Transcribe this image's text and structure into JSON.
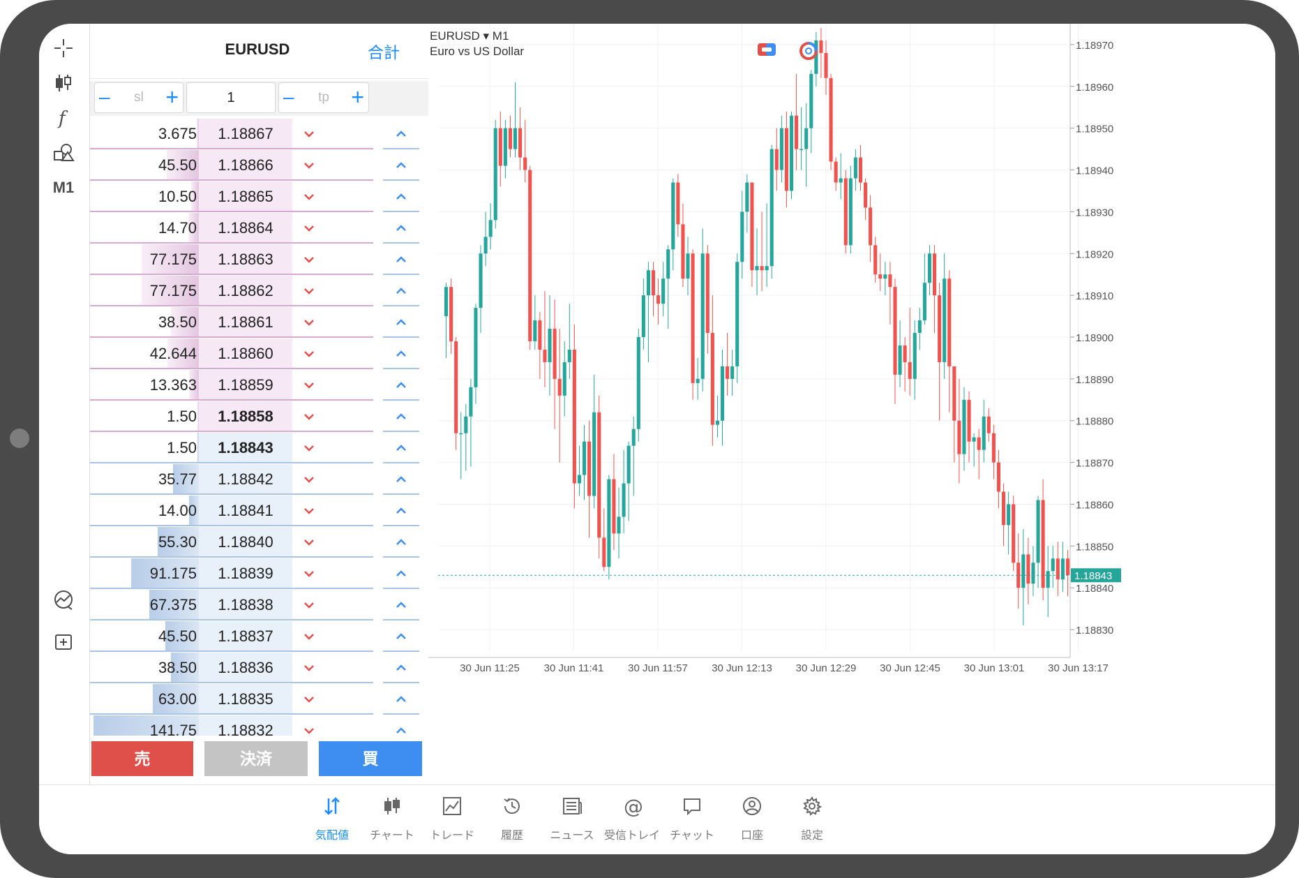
{
  "colors": {
    "accent": "#1a8cff",
    "sell": "#e0504a",
    "buy": "#3d8ef0",
    "close": "#c4c4c4",
    "bull": "#26a69a",
    "bear": "#ef5350",
    "highlight": "#f3991f",
    "ask_bg": "#f6e8f4",
    "bid_bg": "#e8f0fa",
    "ask_line": "#d8a8d4",
    "bid_line": "#a8c4e6"
  },
  "toolbar": {
    "items": [
      {
        "icon": "crosshair-icon"
      },
      {
        "icon": "candlestick-icon"
      },
      {
        "icon": "function-icon"
      },
      {
        "icon": "shapes-icon"
      }
    ],
    "timeframe": "M1",
    "bottom_icons": [
      "chart-trend-icon",
      "new-order-icon"
    ]
  },
  "book": {
    "symbol": "EURUSD",
    "total_label": "合計",
    "sl_placeholder": "sl",
    "tp_placeholder": "tp",
    "volume": "1",
    "asks": [
      {
        "vol": "3.675",
        "price": "1.18867",
        "depth": 0.02
      },
      {
        "vol": "45.50",
        "price": "1.18866",
        "depth": 0.3
      },
      {
        "vol": "10.50",
        "price": "1.18865",
        "depth": 0.07
      },
      {
        "vol": "14.70",
        "price": "1.18864",
        "depth": 0.1
      },
      {
        "vol": "77.175",
        "price": "1.18863",
        "depth": 0.53
      },
      {
        "vol": "77.175",
        "price": "1.18862",
        "depth": 0.53
      },
      {
        "vol": "38.50",
        "price": "1.18861",
        "depth": 0.26
      },
      {
        "vol": "42.644",
        "price": "1.18860",
        "depth": 0.29
      },
      {
        "vol": "13.363",
        "price": "1.18859",
        "depth": 0.09
      },
      {
        "vol": "1.50",
        "price": "1.18858",
        "depth": 0.01,
        "bold": true
      }
    ],
    "bids": [
      {
        "vol": "1.50",
        "price": "1.18843",
        "depth": 0.01,
        "bold": true
      },
      {
        "vol": "35.77",
        "price": "1.18842",
        "depth": 0.24
      },
      {
        "vol": "14.00",
        "price": "1.18841",
        "depth": 0.09
      },
      {
        "vol": "55.30",
        "price": "1.18840",
        "depth": 0.38
      },
      {
        "vol": "91.175",
        "price": "1.18839",
        "depth": 0.63
      },
      {
        "vol": "67.375",
        "price": "1.18838",
        "depth": 0.46
      },
      {
        "vol": "45.50",
        "price": "1.18837",
        "depth": 0.31
      },
      {
        "vol": "38.50",
        "price": "1.18836",
        "depth": 0.26
      },
      {
        "vol": "63.00",
        "price": "1.18835",
        "depth": 0.43
      },
      {
        "vol": "141.75",
        "price": "1.18832",
        "depth": 0.98
      }
    ],
    "sell_label": "売",
    "close_label": "決済",
    "buy_label": "買"
  },
  "chart": {
    "symbol": "EURUSD",
    "timeframe": "M1",
    "description": "Euro vs US Dollar",
    "current_price": "1.18843",
    "icons": [
      "one-click-trading-icon",
      "trade-timer-icon"
    ]
  },
  "chart_data": {
    "type": "candlestick",
    "title": "EURUSD ▾ M1",
    "subtitle": "Euro vs US Dollar",
    "ylim": [
      1.18825,
      1.18975
    ],
    "y_ticks": [
      "1.18970",
      "1.18960",
      "1.18950",
      "1.18940",
      "1.18930",
      "1.18920",
      "1.18910",
      "1.18900",
      "1.18890",
      "1.18880",
      "1.18870",
      "1.18860",
      "1.18850",
      "1.18840",
      "1.18830"
    ],
    "x_ticks": [
      "30 Jun 11:25",
      "30 Jun 11:41",
      "30 Jun 11:57",
      "30 Jun 12:13",
      "30 Jun 12:29",
      "30 Jun 12:45",
      "30 Jun 13:01",
      "30 Jun 13:17"
    ],
    "last_price": 1.18843,
    "candles": [
      [
        1.18905,
        1.18912,
        1.18913,
        1.18895
      ],
      [
        1.18912,
        1.18899,
        1.18914,
        1.18896
      ],
      [
        1.18899,
        1.18877,
        1.189,
        1.18873
      ],
      [
        1.18877,
        1.18877,
        1.18882,
        1.18866
      ],
      [
        1.18877,
        1.18881,
        1.18884,
        1.18868
      ],
      [
        1.18881,
        1.18888,
        1.1889,
        1.18869
      ],
      [
        1.18888,
        1.18907,
        1.18908,
        1.18884
      ],
      [
        1.18907,
        1.1892,
        1.18922,
        1.18901
      ],
      [
        1.1892,
        1.18924,
        1.1893,
        1.18917
      ],
      [
        1.18924,
        1.18928,
        1.18932,
        1.18921
      ],
      [
        1.18928,
        1.1895,
        1.18952,
        1.18926
      ],
      [
        1.1895,
        1.18941,
        1.18954,
        1.18936
      ],
      [
        1.18941,
        1.1895,
        1.18952,
        1.18938
      ],
      [
        1.1895,
        1.18945,
        1.18953,
        1.18943
      ],
      [
        1.18945,
        1.1895,
        1.18961,
        1.18943
      ],
      [
        1.1895,
        1.18943,
        1.18955,
        1.1894
      ],
      [
        1.18943,
        1.1894,
        1.18952,
        1.18937
      ],
      [
        1.1894,
        1.18899,
        1.18941,
        1.18897
      ],
      [
        1.18899,
        1.18904,
        1.1891,
        1.18897
      ],
      [
        1.18904,
        1.18897,
        1.18906,
        1.1889
      ],
      [
        1.18897,
        1.18894,
        1.18911,
        1.18888
      ],
      [
        1.18894,
        1.18902,
        1.1891,
        1.18886
      ],
      [
        1.18902,
        1.1889,
        1.18909,
        1.18878
      ],
      [
        1.1889,
        1.18886,
        1.18902,
        1.1887
      ],
      [
        1.18886,
        1.18894,
        1.18899,
        1.18881
      ],
      [
        1.18894,
        1.18897,
        1.18908,
        1.1889
      ],
      [
        1.18897,
        1.18865,
        1.18903,
        1.18859
      ],
      [
        1.18865,
        1.18867,
        1.18874,
        1.18862
      ],
      [
        1.18867,
        1.18875,
        1.18879,
        1.18861
      ],
      [
        1.18875,
        1.18862,
        1.1888,
        1.18852
      ],
      [
        1.18862,
        1.18882,
        1.18891,
        1.18859
      ],
      [
        1.18882,
        1.18852,
        1.18886,
        1.18847
      ],
      [
        1.18852,
        1.18845,
        1.18859,
        1.18844
      ],
      [
        1.18845,
        1.18866,
        1.18867,
        1.18842
      ],
      [
        1.18866,
        1.18853,
        1.18872,
        1.18849
      ],
      [
        1.18853,
        1.18857,
        1.18864,
        1.18847
      ],
      [
        1.18857,
        1.18865,
        1.18873,
        1.18853
      ],
      [
        1.18865,
        1.18874,
        1.18875,
        1.18856
      ],
      [
        1.18874,
        1.18878,
        1.18881,
        1.18862
      ],
      [
        1.18878,
        1.189,
        1.18902,
        1.18875
      ],
      [
        1.189,
        1.1891,
        1.18914,
        1.18897
      ],
      [
        1.1891,
        1.18916,
        1.18918,
        1.18894
      ],
      [
        1.18916,
        1.1891,
        1.18918,
        1.18905
      ],
      [
        1.1891,
        1.18908,
        1.18914,
        1.18903
      ],
      [
        1.18908,
        1.18914,
        1.18918,
        1.18905
      ],
      [
        1.18914,
        1.18921,
        1.18922,
        1.18902
      ],
      [
        1.18921,
        1.18937,
        1.18938,
        1.18916
      ],
      [
        1.18937,
        1.18927,
        1.18939,
        1.18924
      ],
      [
        1.18927,
        1.18914,
        1.18932,
        1.18912
      ],
      [
        1.18914,
        1.1892,
        1.18924,
        1.1891
      ],
      [
        1.1892,
        1.18889,
        1.18921,
        1.18885
      ],
      [
        1.18889,
        1.1889,
        1.18895,
        1.18885
      ],
      [
        1.1889,
        1.1892,
        1.18926,
        1.18887
      ],
      [
        1.1892,
        1.18901,
        1.18922,
        1.18896
      ],
      [
        1.18901,
        1.18879,
        1.1891,
        1.18874
      ],
      [
        1.18879,
        1.1888,
        1.18886,
        1.18876
      ],
      [
        1.1888,
        1.18893,
        1.18897,
        1.18874
      ],
      [
        1.18893,
        1.1889,
        1.18901,
        1.18886
      ],
      [
        1.1889,
        1.18893,
        1.18897,
        1.18886
      ],
      [
        1.18893,
        1.18918,
        1.1892,
        1.18889
      ],
      [
        1.18918,
        1.1893,
        1.18935,
        1.18914
      ],
      [
        1.1893,
        1.18937,
        1.18939,
        1.18925
      ],
      [
        1.18937,
        1.18916,
        1.18936,
        1.18912
      ],
      [
        1.18916,
        1.18917,
        1.18926,
        1.1891
      ],
      [
        1.18917,
        1.18916,
        1.1893,
        1.18911
      ],
      [
        1.18916,
        1.18917,
        1.18932,
        1.18912
      ],
      [
        1.18917,
        1.18945,
        1.18946,
        1.18914
      ],
      [
        1.18945,
        1.1894,
        1.1895,
        1.18935
      ],
      [
        1.1894,
        1.1895,
        1.18953,
        1.18937
      ],
      [
        1.1895,
        1.18935,
        1.18954,
        1.18931
      ],
      [
        1.18935,
        1.18953,
        1.18954,
        1.18933
      ],
      [
        1.18953,
        1.18945,
        1.18963,
        1.1894
      ],
      [
        1.18945,
        1.18945,
        1.18955,
        1.1894
      ],
      [
        1.18945,
        1.1895,
        1.18956,
        1.18936
      ],
      [
        1.1895,
        1.18963,
        1.18964,
        1.18944
      ],
      [
        1.18963,
        1.18971,
        1.18973,
        1.1896
      ],
      [
        1.18971,
        1.18968,
        1.18974,
        1.18962
      ],
      [
        1.18968,
        1.18962,
        1.18971,
        1.18958
      ],
      [
        1.18962,
        1.18942,
        1.18963,
        1.1894
      ],
      [
        1.18942,
        1.18937,
        1.18943,
        1.18935
      ],
      [
        1.18937,
        1.18938,
        1.18944,
        1.18933
      ],
      [
        1.18938,
        1.18922,
        1.1894,
        1.1892
      ],
      [
        1.18922,
        1.18938,
        1.18941,
        1.1892
      ],
      [
        1.18938,
        1.18943,
        1.18945,
        1.18935
      ],
      [
        1.18943,
        1.18937,
        1.18946,
        1.18935
      ],
      [
        1.18937,
        1.18931,
        1.18938,
        1.18928
      ],
      [
        1.18931,
        1.18922,
        1.18934,
        1.18918
      ],
      [
        1.18922,
        1.18915,
        1.18924,
        1.18913
      ],
      [
        1.18915,
        1.18914,
        1.1892,
        1.18911
      ],
      [
        1.18914,
        1.18915,
        1.18918,
        1.1891
      ],
      [
        1.18915,
        1.18912,
        1.18918,
        1.18903
      ],
      [
        1.18912,
        1.18891,
        1.18914,
        1.18884
      ],
      [
        1.18891,
        1.18898,
        1.18904,
        1.18888
      ],
      [
        1.18898,
        1.18894,
        1.189,
        1.18887
      ],
      [
        1.18894,
        1.1889,
        1.18907,
        1.18886
      ],
      [
        1.1889,
        1.18901,
        1.18904,
        1.18885
      ],
      [
        1.18901,
        1.18904,
        1.18907,
        1.18897
      ],
      [
        1.18904,
        1.18913,
        1.1892,
        1.18903
      ],
      [
        1.18913,
        1.1892,
        1.18922,
        1.1891
      ],
      [
        1.1892,
        1.1891,
        1.18922,
        1.18901
      ],
      [
        1.1891,
        1.18894,
        1.18913,
        1.1888
      ],
      [
        1.18894,
        1.18914,
        1.1892,
        1.1889
      ],
      [
        1.18914,
        1.18893,
        1.18916,
        1.18882
      ],
      [
        1.18893,
        1.1888,
        1.18886,
        1.1887
      ],
      [
        1.1888,
        1.18872,
        1.1889,
        1.18865
      ],
      [
        1.18872,
        1.18885,
        1.18888,
        1.18868
      ],
      [
        1.18885,
        1.18875,
        1.18887,
        1.1887
      ],
      [
        1.18875,
        1.18876,
        1.18877,
        1.18869
      ],
      [
        1.18876,
        1.18873,
        1.18878,
        1.18866
      ],
      [
        1.18873,
        1.18881,
        1.18885,
        1.1887
      ],
      [
        1.18881,
        1.18877,
        1.18883,
        1.18875
      ],
      [
        1.18877,
        1.1887,
        1.18879,
        1.18866
      ],
      [
        1.1887,
        1.18863,
        1.18873,
        1.18859
      ],
      [
        1.18863,
        1.18855,
        1.18865,
        1.1885
      ],
      [
        1.18855,
        1.1886,
        1.18863,
        1.18848
      ],
      [
        1.1886,
        1.18846,
        1.18862,
        1.18844
      ],
      [
        1.18846,
        1.1884,
        1.18853,
        1.18835
      ],
      [
        1.1884,
        1.18848,
        1.18854,
        1.18831
      ],
      [
        1.18848,
        1.18841,
        1.18852,
        1.18836
      ],
      [
        1.18841,
        1.18846,
        1.1885,
        1.18838
      ],
      [
        1.18846,
        1.18861,
        1.18862,
        1.1884
      ],
      [
        1.18861,
        1.1884,
        1.18866,
        1.18837
      ],
      [
        1.1884,
        1.18844,
        1.1885,
        1.18833
      ],
      [
        1.18844,
        1.18847,
        1.1885,
        1.1884
      ],
      [
        1.18847,
        1.18842,
        1.18851,
        1.18838
      ],
      [
        1.18842,
        1.18847,
        1.18851,
        1.18839
      ],
      [
        1.18847,
        1.18843,
        1.18849,
        1.18838
      ]
    ]
  },
  "nav": {
    "items": [
      {
        "label": "気配値",
        "icon": "quotes-icon",
        "active": true
      },
      {
        "label": "チャート",
        "icon": "chart-icon"
      },
      {
        "label": "トレード",
        "icon": "trade-icon"
      },
      {
        "label": "履歴",
        "icon": "history-icon"
      },
      {
        "label": "ニュース",
        "icon": "news-icon"
      },
      {
        "label": "受信トレイ",
        "icon": "mail-icon"
      },
      {
        "label": "チャット",
        "icon": "chat-icon"
      },
      {
        "label": "口座",
        "icon": "account-icon"
      },
      {
        "label": "設定",
        "icon": "settings-icon"
      }
    ]
  }
}
